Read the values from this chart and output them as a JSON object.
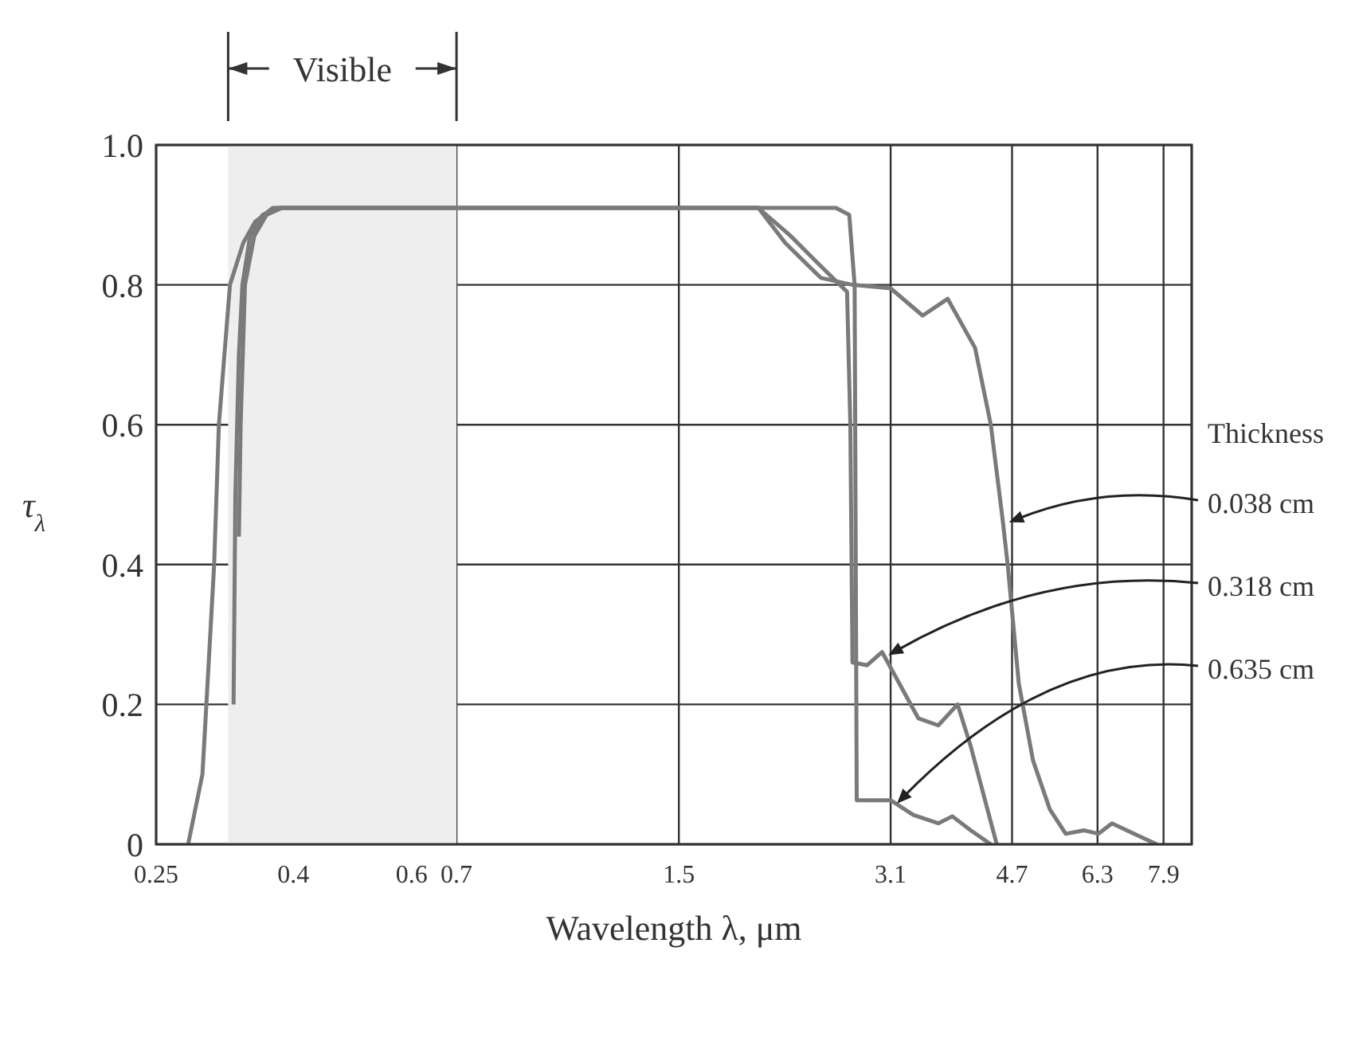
{
  "chart_data": {
    "type": "line",
    "xlabel": "Wavelength λ, μm",
    "ylabel": "τ$_{λ}$",
    "legend_title": "Thickness",
    "xlim": [
      0.25,
      8.7
    ],
    "xticks": [
      0.25,
      0.4,
      0.6,
      0.7,
      1.5,
      3.1,
      4.7,
      6.3,
      7.9
    ],
    "ylim": [
      0,
      1
    ],
    "yticks": [
      0,
      0.2,
      0.4,
      0.6,
      0.8,
      {
        "value": 1,
        "label": "1.0"
      }
    ],
    "grid": true,
    "legend": "right",
    "log": "x",
    "marker": "none",
    "line_style": "solid",
    "bands": [
      {
        "axis": "x",
        "from": 0.32,
        "to": 0.7,
        "label": "Visible",
        "color": "#eeeeee"
      }
    ],
    "series": [
      {
        "name": "0.038 cm",
        "color": "#7a7a7a",
        "x": [
          0.279,
          0.293,
          0.297,
          0.305,
          0.31,
          0.322,
          0.337,
          0.351,
          0.373,
          0.4,
          0.6,
          1.5,
          1.97,
          2.16,
          2.44,
          2.72,
          3.1,
          3.46,
          3.77,
          4.14,
          4.37,
          4.55,
          4.63,
          4.81,
          5.05,
          5.35,
          5.65,
          6.01,
          6.32,
          6.62,
          7.14,
          7.72
        ],
        "values": [
          0,
          0.1,
          0.2,
          0.4,
          0.6,
          0.8,
          0.86,
          0.89,
          0.91,
          0.91,
          0.91,
          0.91,
          0.91,
          0.86,
          0.81,
          0.8,
          0.795,
          0.756,
          0.78,
          0.71,
          0.6,
          0.465,
          0.4,
          0.23,
          0.12,
          0.05,
          0.015,
          0.02,
          0.015,
          0.03,
          0.015,
          0
        ]
      },
      {
        "name": "0.318 cm",
        "color": "#7a7a7a",
        "x": [
          0.326,
          0.328,
          0.332,
          0.336,
          0.345,
          0.36,
          0.38,
          0.4,
          0.6,
          1.5,
          1.97,
          2.2,
          2.48,
          2.67,
          2.7,
          2.72,
          2.86,
          3.01,
          3.41,
          3.65,
          3.9,
          4.08,
          4.32,
          4.46
        ],
        "values": [
          0.2,
          0.5,
          0.7,
          0.8,
          0.87,
          0.9,
          0.91,
          0.91,
          0.91,
          0.91,
          0.91,
          0.87,
          0.82,
          0.79,
          0.6,
          0.26,
          0.256,
          0.275,
          0.18,
          0.17,
          0.2,
          0.14,
          0.05,
          0
        ]
      },
      {
        "name": "0.635 cm",
        "color": "#7a7a7a",
        "x": [
          0.332,
          0.334,
          0.339,
          0.35,
          0.365,
          0.385,
          0.4,
          0.6,
          1.5,
          2.57,
          2.69,
          2.74,
          2.76,
          3.1,
          3.35,
          3.65,
          3.83,
          4.08,
          4.37
        ],
        "values": [
          0.44,
          0.6,
          0.8,
          0.87,
          0.9,
          0.91,
          0.91,
          0.91,
          0.91,
          0.91,
          0.9,
          0.8,
          0.063,
          0.063,
          0.042,
          0.03,
          0.04,
          0.02,
          0
        ]
      }
    ]
  }
}
